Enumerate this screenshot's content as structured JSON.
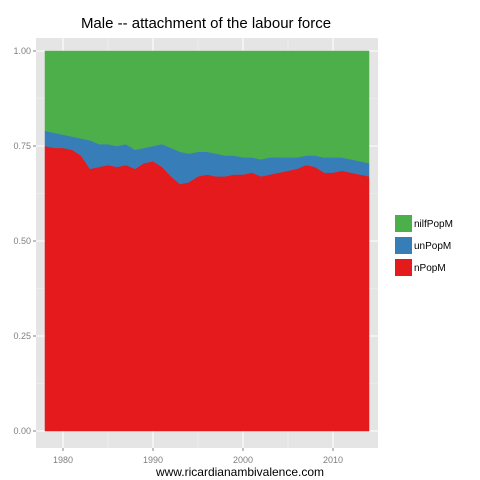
{
  "chart_data": {
    "type": "area",
    "stacked": true,
    "title": "Male -- attachment of the labour force",
    "xlabel": "www.ricardianambivalence.com",
    "ylabel": "",
    "xlim": [
      1977,
      2015
    ],
    "ylim": [
      0,
      1
    ],
    "x_ticks": [
      1980,
      1990,
      2000,
      2010
    ],
    "x_tick_labels": [
      "1980",
      "1990",
      "2000",
      "2010"
    ],
    "y_ticks": [
      0,
      0.25,
      0.5,
      0.75,
      1
    ],
    "y_tick_labels": [
      "0.00",
      "0.25",
      "0.50",
      "0.75",
      "1.00"
    ],
    "grid": true,
    "legend_position": "right",
    "legend": [
      "nilfPopM",
      "unPopM",
      "nPopM"
    ],
    "series": [
      {
        "name": "nPopM",
        "color": "#e41a1c",
        "x": [
          1978,
          1979,
          1980,
          1981,
          1982,
          1983,
          1984,
          1985,
          1986,
          1987,
          1988,
          1989,
          1990,
          1991,
          1992,
          1993,
          1994,
          1995,
          1996,
          1997,
          1998,
          1999,
          2000,
          2001,
          2002,
          2003,
          2004,
          2005,
          2006,
          2007,
          2008,
          2009,
          2010,
          2011,
          2012,
          2013,
          2014
        ],
        "values": [
          0.75,
          0.745,
          0.745,
          0.74,
          0.725,
          0.69,
          0.695,
          0.7,
          0.695,
          0.7,
          0.69,
          0.705,
          0.71,
          0.695,
          0.67,
          0.65,
          0.655,
          0.67,
          0.675,
          0.67,
          0.67,
          0.675,
          0.675,
          0.68,
          0.67,
          0.675,
          0.68,
          0.685,
          0.69,
          0.7,
          0.695,
          0.68,
          0.68,
          0.685,
          0.68,
          0.675,
          0.67
        ]
      },
      {
        "name": "unPopM",
        "color": "#377eb8",
        "x": [
          1978,
          1979,
          1980,
          1981,
          1982,
          1983,
          1984,
          1985,
          1986,
          1987,
          1988,
          1989,
          1990,
          1991,
          1992,
          1993,
          1994,
          1995,
          1996,
          1997,
          1998,
          1999,
          2000,
          2001,
          2002,
          2003,
          2004,
          2005,
          2006,
          2007,
          2008,
          2009,
          2010,
          2011,
          2012,
          2013,
          2014
        ],
        "values": [
          0.04,
          0.04,
          0.035,
          0.035,
          0.045,
          0.075,
          0.06,
          0.055,
          0.055,
          0.055,
          0.05,
          0.04,
          0.04,
          0.06,
          0.075,
          0.085,
          0.075,
          0.065,
          0.06,
          0.06,
          0.055,
          0.05,
          0.045,
          0.04,
          0.045,
          0.045,
          0.04,
          0.035,
          0.03,
          0.025,
          0.03,
          0.04,
          0.04,
          0.035,
          0.035,
          0.035,
          0.035
        ]
      },
      {
        "name": "nilfPopM",
        "color": "#4daf4a",
        "x": [
          1978,
          1979,
          1980,
          1981,
          1982,
          1983,
          1984,
          1985,
          1986,
          1987,
          1988,
          1989,
          1990,
          1991,
          1992,
          1993,
          1994,
          1995,
          1996,
          1997,
          1998,
          1999,
          2000,
          2001,
          2002,
          2003,
          2004,
          2005,
          2006,
          2007,
          2008,
          2009,
          2010,
          2011,
          2012,
          2013,
          2014
        ],
        "values": [
          0.21,
          0.215,
          0.22,
          0.225,
          0.23,
          0.235,
          0.245,
          0.245,
          0.25,
          0.245,
          0.26,
          0.255,
          0.25,
          0.245,
          0.255,
          0.265,
          0.27,
          0.265,
          0.265,
          0.27,
          0.275,
          0.275,
          0.28,
          0.28,
          0.285,
          0.28,
          0.28,
          0.28,
          0.28,
          0.275,
          0.275,
          0.28,
          0.28,
          0.28,
          0.285,
          0.29,
          0.295
        ]
      }
    ]
  }
}
